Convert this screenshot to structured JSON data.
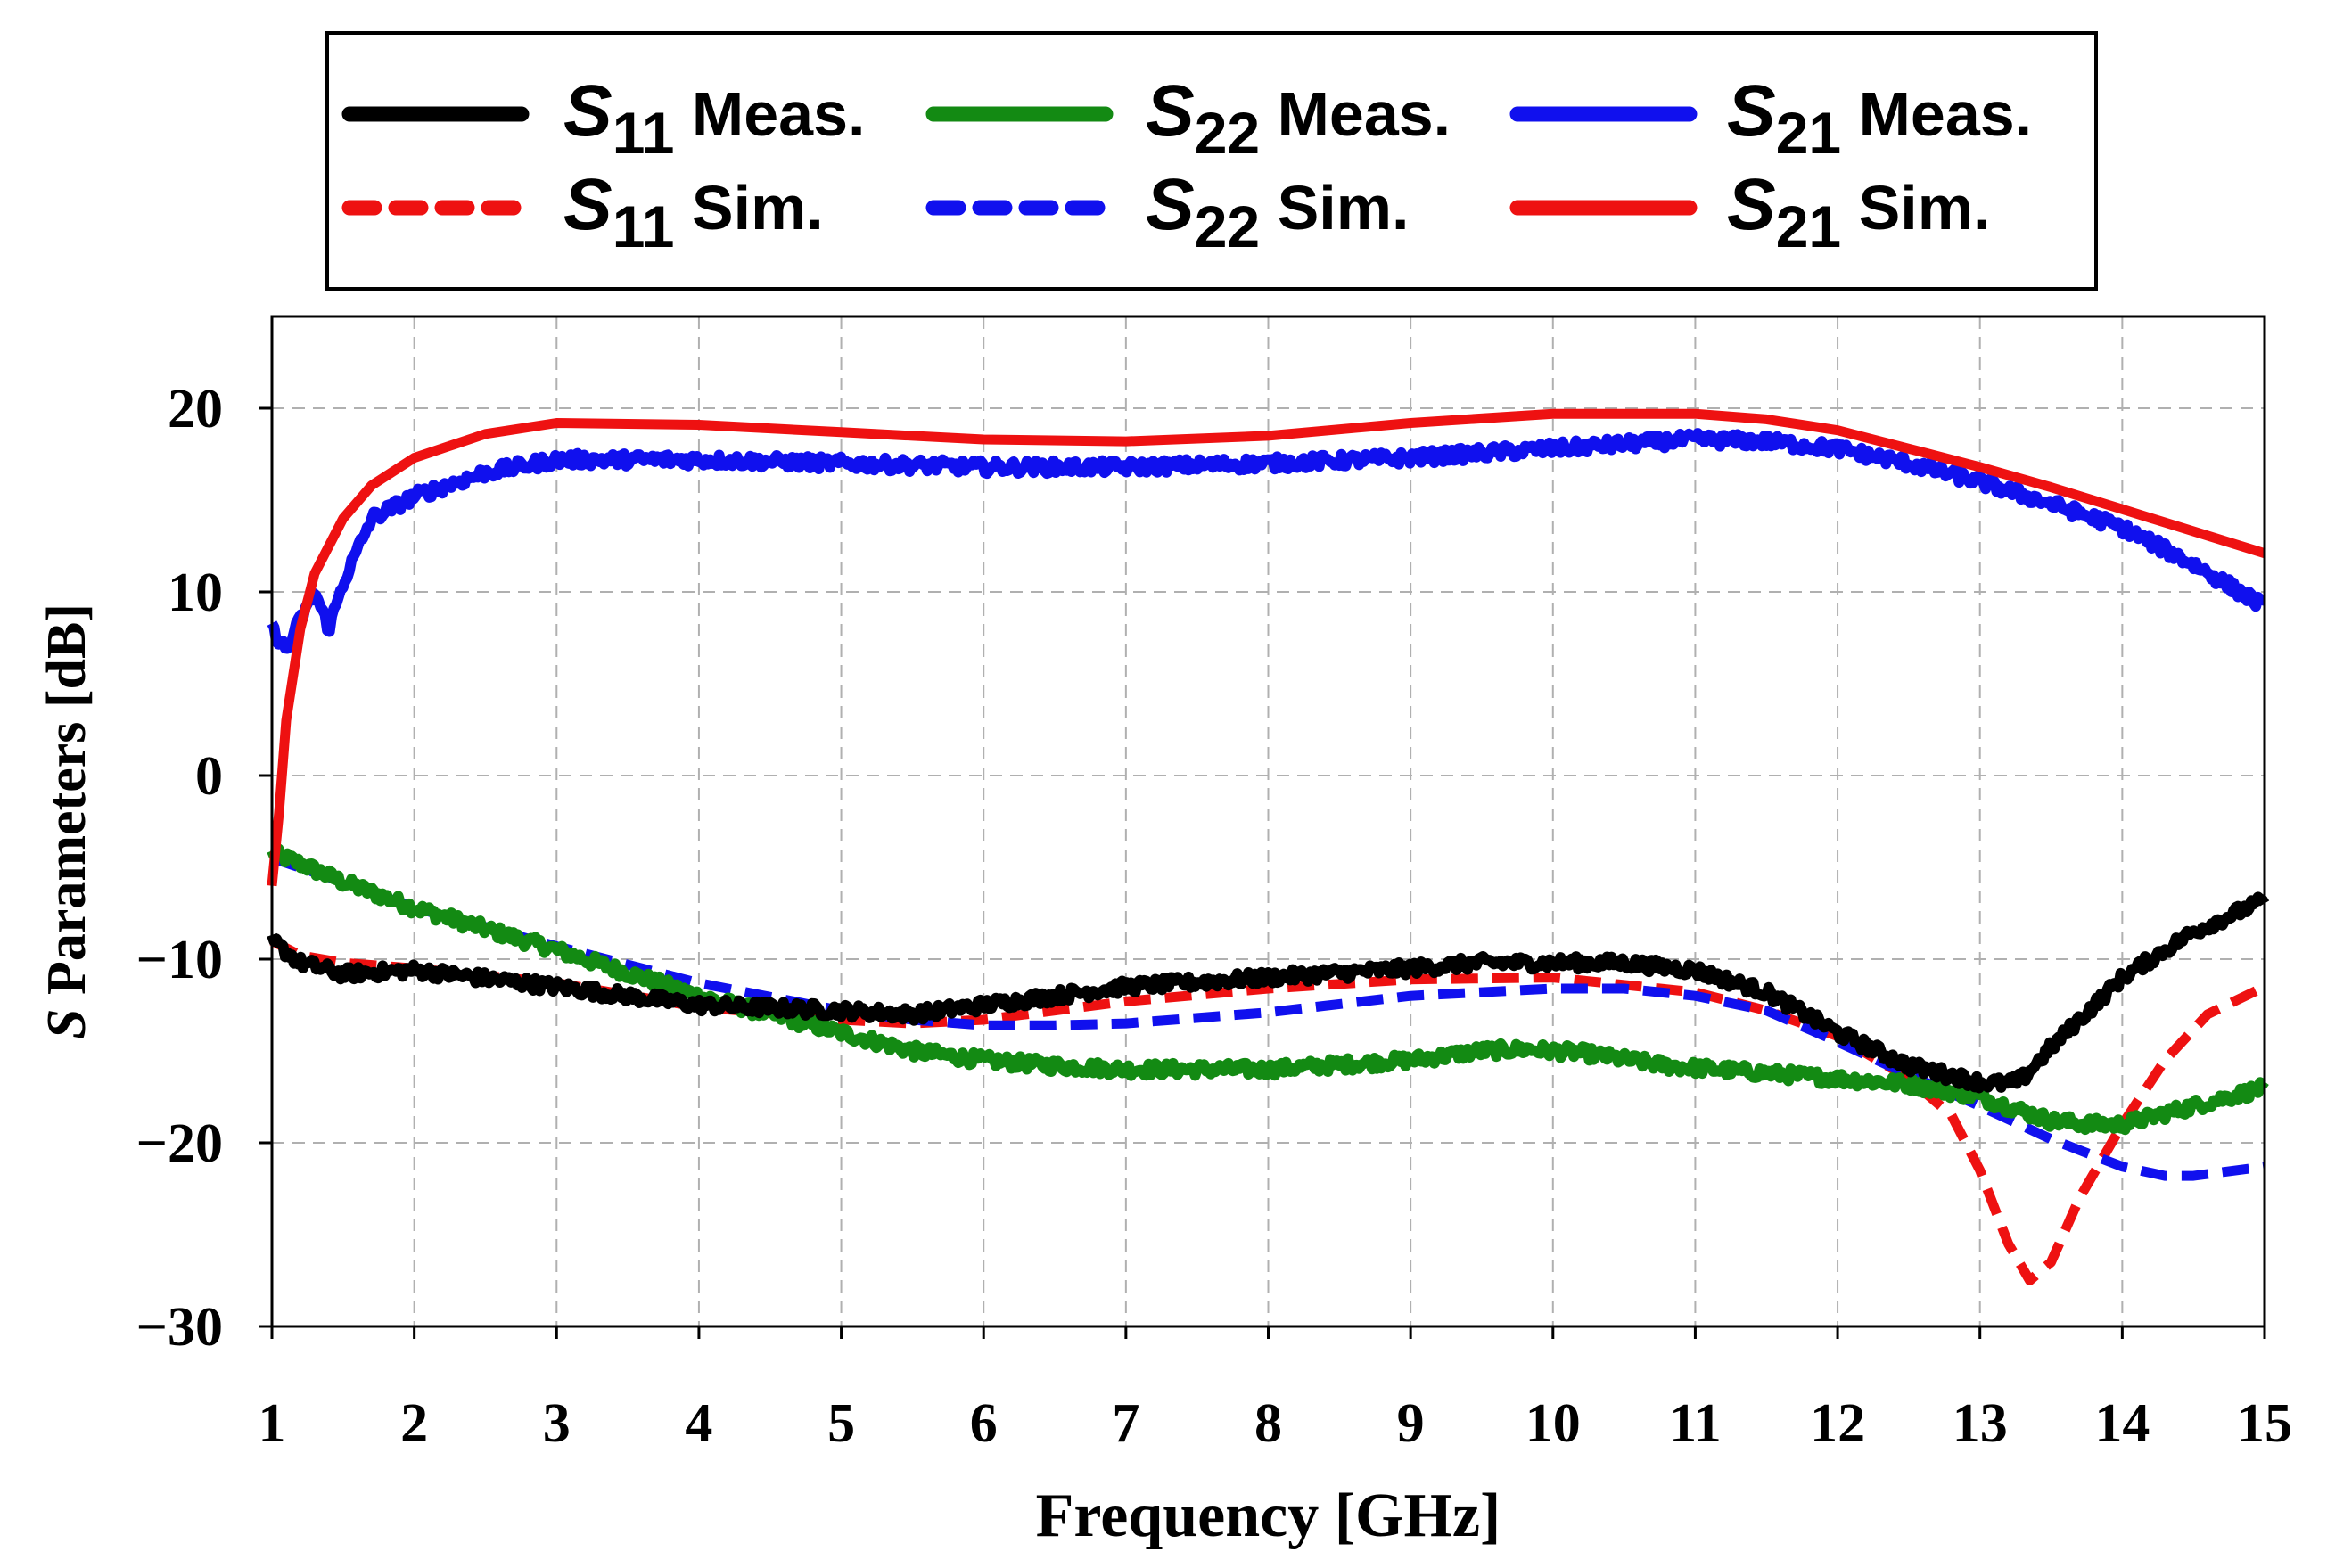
{
  "chart_data": {
    "type": "line",
    "xlabel": "Frequency [GHz]",
    "ylabel_symbol": "S",
    "ylabel_rest": " Parameters [dB]",
    "xlim": [
      1,
      15
    ],
    "ylim": [
      -30,
      25
    ],
    "xticks": [
      1,
      2,
      3,
      4,
      5,
      6,
      7,
      8,
      9,
      10,
      11,
      12,
      13,
      14,
      15
    ],
    "yticks": [
      20,
      10,
      0,
      -10,
      -20,
      -30
    ],
    "ytick_labels": [
      "20",
      "10",
      "0",
      "−10",
      "−20",
      "−30"
    ],
    "grid": true,
    "legend_position": "top",
    "series": [
      {
        "name": "S11 Meas.",
        "symbol": "S",
        "subscript": "11",
        "suffix": " Meas.",
        "color": "#000000",
        "style": "solid",
        "noisy": true,
        "x": [
          1,
          1.2,
          1.5,
          2,
          3,
          4,
          5,
          5.5,
          6,
          7,
          8,
          9,
          9.5,
          10,
          10.5,
          11,
          11.5,
          12,
          12.5,
          13,
          13.2,
          13.3,
          13.5,
          14,
          14.5,
          15
        ],
        "y": [
          -9,
          -10.2,
          -10.8,
          -10.6,
          -11.5,
          -12.5,
          -12.8,
          -13,
          -12.5,
          -11.5,
          -11,
          -10.5,
          -10.2,
          -10.2,
          -10.2,
          -10.6,
          -11.8,
          -14,
          -15.8,
          -16.7,
          -16.8,
          -16.5,
          -14.8,
          -11,
          -8.5,
          -6.8
        ]
      },
      {
        "name": "S22 Meas.",
        "symbol": "S",
        "subscript": "22",
        "suffix": " Meas.",
        "color": "#138a13",
        "style": "solid",
        "noisy": true,
        "x": [
          1,
          1.2,
          1.5,
          2,
          3,
          4,
          5,
          5.5,
          6,
          6.5,
          7,
          8,
          9,
          9.5,
          9.8,
          10.2,
          10.8,
          11.5,
          12,
          12.5,
          13,
          13.5,
          13.8,
          14,
          14.5,
          15
        ],
        "y": [
          -4.2,
          -4.8,
          -5.8,
          -7.2,
          -9.5,
          -12,
          -14,
          -15,
          -15.5,
          -15.8,
          -16,
          -16,
          -15.5,
          -15,
          -14.9,
          -15.1,
          -15.8,
          -16.2,
          -16.5,
          -16.8,
          -17.5,
          -18.8,
          -19,
          -19,
          -18,
          -17
        ]
      },
      {
        "name": "S21 Meas.",
        "symbol": "S",
        "subscript": "21",
        "suffix": " Meas.",
        "color": "#1010ee",
        "style": "solid",
        "noisy": true,
        "x": [
          1,
          1.1,
          1.2,
          1.3,
          1.4,
          1.5,
          1.7,
          2,
          2.5,
          3,
          4,
          5,
          6,
          7,
          8,
          9,
          10,
          11,
          11.5,
          12,
          12.5,
          13,
          13.5,
          14,
          14.5,
          15
        ],
        "y": [
          8,
          6.8,
          8.5,
          10,
          8,
          10.5,
          14,
          15.2,
          16.5,
          17.2,
          17.2,
          17,
          16.8,
          16.8,
          17,
          17.3,
          17.8,
          18.3,
          18.2,
          17.8,
          17,
          16,
          14.8,
          13.5,
          11.5,
          9.2
        ]
      },
      {
        "name": "S11 Sim.",
        "symbol": "S",
        "subscript": "11",
        "suffix": " Sim.",
        "color": "#ee1111",
        "style": "dashed",
        "noisy": false,
        "x": [
          1,
          1.2,
          1.5,
          2,
          3,
          4,
          5,
          5.5,
          6,
          6.5,
          7,
          8,
          9,
          10,
          11,
          11.5,
          12,
          12.5,
          12.8,
          13,
          13.2,
          13.35,
          13.5,
          13.7,
          14,
          14.3,
          14.6,
          15
        ],
        "y": [
          -9,
          -9.8,
          -10.2,
          -10.5,
          -11.3,
          -12.6,
          -13.3,
          -13.5,
          -13.3,
          -12.8,
          -12.3,
          -11.6,
          -11.1,
          -11,
          -11.8,
          -12.8,
          -14.2,
          -16.5,
          -18.5,
          -21.5,
          -25.5,
          -27.5,
          -26.5,
          -23,
          -19,
          -15.5,
          -13,
          -11.5
        ]
      },
      {
        "name": "S22 Sim.",
        "symbol": "S",
        "subscript": "22",
        "suffix": " Sim.",
        "color": "#1010ee",
        "style": "dashed",
        "noisy": false,
        "x": [
          1,
          1.5,
          2,
          3,
          4,
          5,
          5.5,
          6,
          6.5,
          7,
          8,
          9,
          10,
          10.5,
          11,
          11.5,
          12,
          12.5,
          13,
          13.5,
          14,
          14.3,
          14.5,
          15
        ],
        "y": [
          -4.5,
          -5.8,
          -7.2,
          -9.3,
          -11.3,
          -12.8,
          -13.3,
          -13.6,
          -13.6,
          -13.5,
          -12.9,
          -12,
          -11.6,
          -11.6,
          -12,
          -12.8,
          -14.5,
          -16.3,
          -18,
          -19.8,
          -21.3,
          -21.8,
          -21.8,
          -21.3
        ]
      },
      {
        "name": "S21 Sim.",
        "symbol": "S",
        "subscript": "21",
        "suffix": " Sim.",
        "color": "#ee1111",
        "style": "solid",
        "noisy": false,
        "x": [
          1,
          1.05,
          1.1,
          1.2,
          1.3,
          1.5,
          1.7,
          2,
          2.5,
          3,
          4,
          5,
          6,
          7,
          8,
          9,
          10,
          11,
          11.5,
          12,
          12.5,
          13,
          13.5,
          14,
          14.5,
          15
        ],
        "y": [
          -6,
          -2,
          3,
          8,
          11,
          14,
          15.8,
          17.3,
          18.6,
          19.2,
          19.1,
          18.7,
          18.3,
          18.2,
          18.5,
          19.2,
          19.7,
          19.7,
          19.4,
          18.8,
          17.8,
          16.8,
          15.7,
          14.5,
          13.3,
          12.1
        ]
      }
    ]
  }
}
